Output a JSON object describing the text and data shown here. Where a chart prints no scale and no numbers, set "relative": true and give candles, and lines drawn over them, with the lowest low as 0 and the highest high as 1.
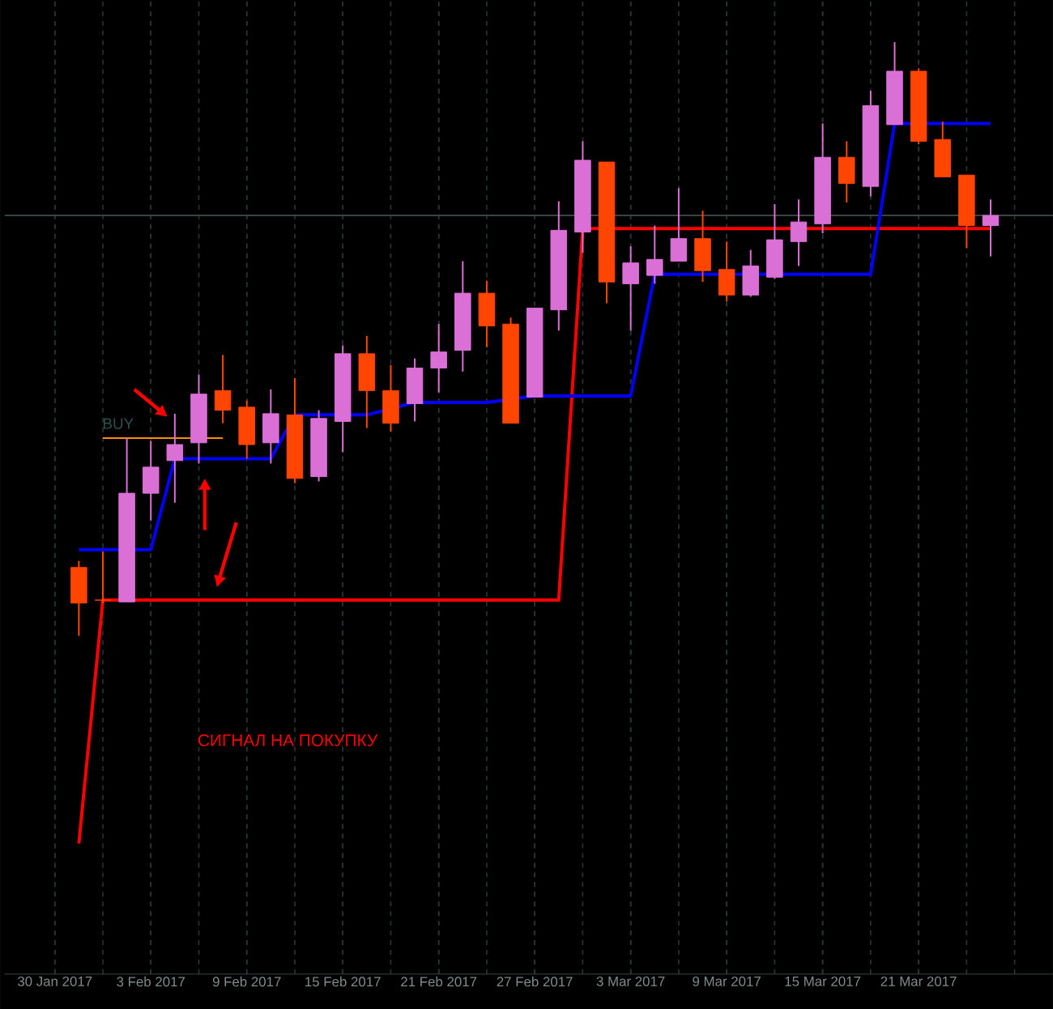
{
  "chart_data": {
    "type": "candlestick",
    "relative": true,
    "categories": [
      "30 Jan 2017",
      null,
      null,
      null,
      "3 Feb 2017",
      null,
      null,
      null,
      "9 Feb 2017",
      null,
      null,
      null,
      "15 Feb 2017",
      null,
      null,
      null,
      "21 Feb 2017",
      null,
      null,
      null,
      "27 Feb 2017",
      null,
      null,
      null,
      "3 Mar 2017",
      null,
      null,
      null,
      "9 Mar 2017",
      null,
      null,
      null,
      "15 Mar 2017",
      null,
      null,
      null,
      "21 Mar 2017",
      null,
      null,
      null
    ],
    "ohlc": [
      null,
      [
        0.115,
        0.126,
        0,
        0.055
      ],
      [
        0.06,
        0.142,
        0.055,
        0.06
      ],
      [
        0.057,
        0.333,
        0.057,
        0.24
      ],
      [
        0.24,
        0.328,
        0.194,
        0.284
      ],
      [
        0.295,
        0.374,
        0.224,
        0.322
      ],
      [
        0.325,
        0.44,
        0.29,
        0.407
      ],
      [
        0.413,
        0.473,
        0.358,
        0.38
      ],
      [
        0.385,
        0.396,
        0.298,
        0.322
      ],
      [
        0.325,
        0.415,
        0.29,
        0.374
      ],
      [
        0.372,
        0.434,
        0.257,
        0.265
      ],
      [
        0.268,
        0.38,
        0.26,
        0.366
      ],
      [
        0.361,
        0.489,
        0.309,
        0.475
      ],
      [
        0.475,
        0.505,
        0.35,
        0.413
      ],
      [
        0.413,
        0.456,
        0.344,
        0.358
      ],
      [
        0.391,
        0.467,
        0.361,
        0.451
      ],
      [
        0.451,
        0.525,
        0.41,
        0.478
      ],
      [
        0.481,
        0.631,
        0.445,
        0.577
      ],
      [
        0.577,
        0.598,
        0.486,
        0.522
      ],
      [
        0.525,
        0.536,
        0.358,
        0.358
      ],
      [
        0.402,
        0.552,
        0.402,
        0.552
      ],
      [
        0.549,
        0.732,
        0.514,
        0.683
      ],
      [
        0.68,
        0.833,
        0.645,
        0.801
      ],
      [
        0.798,
        0.798,
        0.56,
        0.596
      ],
      [
        0.593,
        0.656,
        0.514,
        0.628
      ],
      [
        0.607,
        0.691,
        0.593,
        0.634
      ],
      [
        0.631,
        0.754,
        0.631,
        0.669
      ],
      [
        0.669,
        0.716,
        0.596,
        0.615
      ],
      [
        0.617,
        0.664,
        0.563,
        0.574
      ],
      [
        0.574,
        0.65,
        0.571,
        0.623
      ],
      [
        0.604,
        0.727,
        0.601,
        0.667
      ],
      [
        0.664,
        0.735,
        0.623,
        0.697
      ],
      [
        0.694,
        0.863,
        0.678,
        0.806
      ],
      [
        0.806,
        0.833,
        0.73,
        0.762
      ],
      [
        0.757,
        0.918,
        0.74,
        0.893
      ],
      [
        0.861,
        1,
        0.861,
        0.951
      ],
      [
        0.951,
        0.956,
        0.828,
        0.833
      ],
      [
        0.836,
        0.866,
        0.773,
        0.773
      ],
      [
        0.776,
        0.776,
        0.653,
        0.691
      ],
      [
        0.691,
        0.735,
        0.639,
        0.708
      ]
    ],
    "colors": [
      null,
      "#ff4500",
      "#ff4500",
      "#da70d6",
      "#da70d6",
      "#da70d6",
      "#da70d6",
      "#ff4500",
      "#ff4500",
      "#da70d6",
      "#ff4500",
      "#da70d6",
      "#da70d6",
      "#ff4500",
      "#ff4500",
      "#da70d6",
      "#da70d6",
      "#da70d6",
      "#ff4500",
      "#ff4500",
      "#da70d6",
      "#da70d6",
      "#da70d6",
      "#ff4500",
      "#da70d6",
      "#da70d6",
      "#da70d6",
      "#ff4500",
      "#ff4500",
      "#da70d6",
      "#da70d6",
      "#da70d6",
      "#da70d6",
      "#ff4500",
      "#da70d6",
      "#da70d6",
      "#ff4500",
      "#ff4500",
      "#ff4500",
      "#da70d6"
    ],
    "series": [
      {
        "type": "line",
        "color": "#ff0000",
        "values": [
          null,
          -0.35,
          0.06,
          null,
          0.06,
          0.06,
          0.06,
          0.06,
          0.06,
          0.06,
          0.06,
          0.06,
          0.06,
          0.06,
          0.06,
          0.06,
          0.06,
          0.06,
          0.06,
          0.06,
          0.06,
          0.06,
          0.686,
          null,
          0.686,
          0.686,
          0.686,
          0.686,
          0.686,
          0.686,
          0.686,
          null,
          0.686,
          0.686,
          0.686,
          0.686,
          0.686,
          0.686,
          0.686,
          0.686
        ]
      },
      {
        "type": "line",
        "color": "#0000ff",
        "values": [
          null,
          0.145,
          0.145,
          null,
          0.145,
          0.298,
          0.298,
          0.298,
          0.298,
          0.298,
          0.372,
          0.372,
          null,
          0.372,
          null,
          0.393,
          0.393,
          0.393,
          0.393,
          null,
          0.404,
          0.404,
          0.404,
          0.404,
          0.404,
          0.609,
          0.609,
          0.609,
          null,
          null,
          null,
          0.609,
          0.609,
          0.609,
          0.609,
          0.863,
          null,
          0.863,
          0.863,
          0.863
        ]
      },
      {
        "type": "line",
        "name": "BUY",
        "color": "#ff8c00",
        "values": [
          null,
          null,
          0.333,
          0.333,
          0.333,
          0.333,
          null,
          0.333,
          null,
          null,
          null,
          null,
          null,
          null,
          null,
          null,
          null,
          null,
          null,
          null,
          null,
          null,
          null,
          null,
          null,
          null,
          null,
          null,
          null,
          null,
          null,
          null,
          null,
          null,
          null,
          null,
          null,
          null,
          null,
          null
        ]
      }
    ],
    "ref_lines": [
      {
        "axis": "y",
        "value": 0.708,
        "color": "#364444"
      }
    ],
    "annotations": [
      "СИГНАЛ НА ПОКУПКУ"
    ],
    "grid": true,
    "tick_labels": "x"
  }
}
